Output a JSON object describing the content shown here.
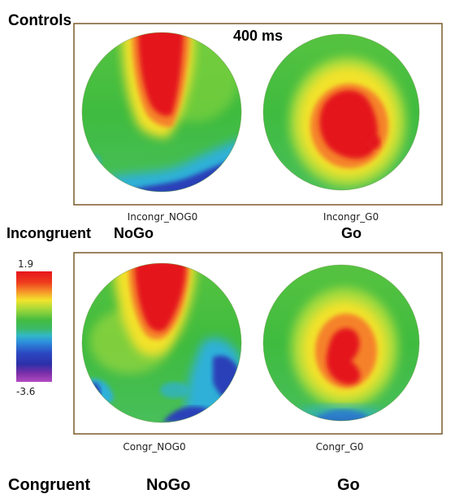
{
  "group_label": "Controls",
  "time_label": "400 ms",
  "colorbar": {
    "max_label": "1.9",
    "min_label": "-3.6"
  },
  "panels": [
    {
      "maps": [
        {
          "caption": "Incongr_NOG0"
        },
        {
          "caption": "Incongr_G0"
        }
      ],
      "condition_label": "Incongruent",
      "left_label": "NoGo",
      "right_label": "Go"
    },
    {
      "maps": [
        {
          "caption": "Congr_NOG0"
        },
        {
          "caption": "Congr_G0"
        }
      ],
      "condition_label": "Congruent",
      "left_label": "NoGo",
      "right_label": "Go"
    }
  ],
  "colors": {
    "frame": "#7a5a2a",
    "green": "#3fbf3f",
    "red": "#e8231c",
    "yellow": "#f2e52a",
    "blue": "#2b4fc4"
  }
}
